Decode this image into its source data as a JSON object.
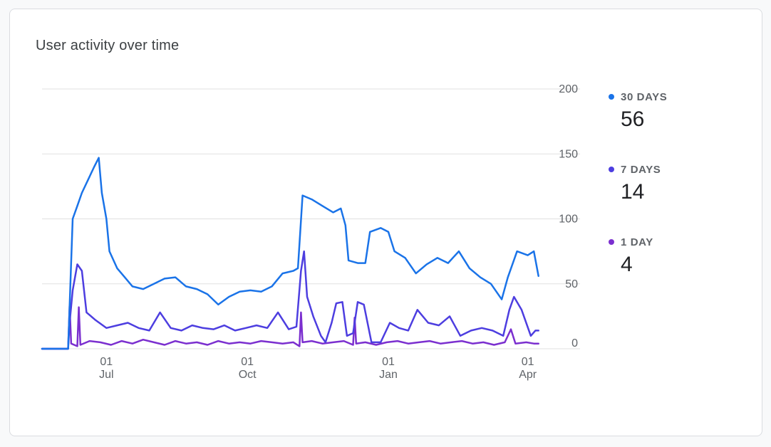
{
  "card": {
    "title": "User activity over time"
  },
  "chart_data": {
    "type": "line",
    "title": "User activity over time",
    "x_range": [
      "2023-05-20",
      "2024-04-10"
    ],
    "ylim": [
      0,
      200
    ],
    "y_ticks": [
      0,
      50,
      100,
      150,
      200
    ],
    "x_ticks": [
      {
        "date": "2023-07-01",
        "day": "01",
        "month": "Jul"
      },
      {
        "date": "2023-10-01",
        "day": "01",
        "month": "Oct"
      },
      {
        "date": "2024-01-01",
        "day": "01",
        "month": "Jan"
      },
      {
        "date": "2024-04-01",
        "day": "01",
        "month": "Apr"
      }
    ],
    "grid": "horizontal",
    "legend_position": "right",
    "series": [
      {
        "name": "30 DAYS",
        "color": "#1a73e8",
        "latest": 56,
        "points": [
          [
            "2023-05-20",
            0
          ],
          [
            "2023-06-06",
            0
          ],
          [
            "2023-06-09",
            100
          ],
          [
            "2023-06-12",
            110
          ],
          [
            "2023-06-15",
            120
          ],
          [
            "2023-06-19",
            130
          ],
          [
            "2023-06-23",
            140
          ],
          [
            "2023-06-26",
            147
          ],
          [
            "2023-06-28",
            120
          ],
          [
            "2023-07-01",
            100
          ],
          [
            "2023-07-03",
            75
          ],
          [
            "2023-07-08",
            62
          ],
          [
            "2023-07-13",
            55
          ],
          [
            "2023-07-18",
            48
          ],
          [
            "2023-07-25",
            46
          ],
          [
            "2023-08-01",
            50
          ],
          [
            "2023-08-08",
            54
          ],
          [
            "2023-08-15",
            55
          ],
          [
            "2023-08-22",
            48
          ],
          [
            "2023-08-29",
            46
          ],
          [
            "2023-09-05",
            42
          ],
          [
            "2023-09-12",
            34
          ],
          [
            "2023-09-19",
            40
          ],
          [
            "2023-09-26",
            44
          ],
          [
            "2023-10-03",
            45
          ],
          [
            "2023-10-10",
            44
          ],
          [
            "2023-10-17",
            48
          ],
          [
            "2023-10-24",
            58
          ],
          [
            "2023-10-31",
            60
          ],
          [
            "2023-11-03",
            62
          ],
          [
            "2023-11-06",
            118
          ],
          [
            "2023-11-12",
            115
          ],
          [
            "2023-11-19",
            110
          ],
          [
            "2023-11-26",
            105
          ],
          [
            "2023-12-01",
            108
          ],
          [
            "2023-12-04",
            95
          ],
          [
            "2023-12-06",
            68
          ],
          [
            "2023-12-12",
            66
          ],
          [
            "2023-12-17",
            66
          ],
          [
            "2023-12-20",
            90
          ],
          [
            "2023-12-27",
            93
          ],
          [
            "2024-01-01",
            90
          ],
          [
            "2024-01-05",
            75
          ],
          [
            "2024-01-12",
            70
          ],
          [
            "2024-01-19",
            58
          ],
          [
            "2024-01-26",
            65
          ],
          [
            "2024-02-02",
            70
          ],
          [
            "2024-02-09",
            66
          ],
          [
            "2024-02-16",
            75
          ],
          [
            "2024-02-23",
            62
          ],
          [
            "2024-03-01",
            55
          ],
          [
            "2024-03-08",
            50
          ],
          [
            "2024-03-15",
            38
          ],
          [
            "2024-03-19",
            55
          ],
          [
            "2024-03-25",
            75
          ],
          [
            "2024-04-01",
            72
          ],
          [
            "2024-04-05",
            75
          ],
          [
            "2024-04-08",
            56
          ]
        ]
      },
      {
        "name": "7 DAYS",
        "color": "#4d3ee0",
        "latest": 14,
        "points": [
          [
            "2023-05-20",
            0
          ],
          [
            "2023-06-06",
            0
          ],
          [
            "2023-06-07",
            20
          ],
          [
            "2023-06-09",
            45
          ],
          [
            "2023-06-12",
            65
          ],
          [
            "2023-06-15",
            60
          ],
          [
            "2023-06-18",
            28
          ],
          [
            "2023-06-24",
            22
          ],
          [
            "2023-07-01",
            16
          ],
          [
            "2023-07-08",
            18
          ],
          [
            "2023-07-15",
            20
          ],
          [
            "2023-07-22",
            16
          ],
          [
            "2023-07-29",
            14
          ],
          [
            "2023-08-05",
            28
          ],
          [
            "2023-08-12",
            16
          ],
          [
            "2023-08-19",
            14
          ],
          [
            "2023-08-26",
            18
          ],
          [
            "2023-09-02",
            16
          ],
          [
            "2023-09-09",
            15
          ],
          [
            "2023-09-16",
            18
          ],
          [
            "2023-09-23",
            14
          ],
          [
            "2023-09-30",
            16
          ],
          [
            "2023-10-07",
            18
          ],
          [
            "2023-10-14",
            16
          ],
          [
            "2023-10-21",
            28
          ],
          [
            "2023-10-28",
            15
          ],
          [
            "2023-11-02",
            17
          ],
          [
            "2023-11-05",
            60
          ],
          [
            "2023-11-07",
            75
          ],
          [
            "2023-11-09",
            40
          ],
          [
            "2023-11-13",
            25
          ],
          [
            "2023-11-18",
            10
          ],
          [
            "2023-11-21",
            5
          ],
          [
            "2023-11-25",
            20
          ],
          [
            "2023-11-28",
            35
          ],
          [
            "2023-12-02",
            36
          ],
          [
            "2023-12-05",
            10
          ],
          [
            "2023-12-09",
            12
          ],
          [
            "2023-12-12",
            36
          ],
          [
            "2023-12-16",
            34
          ],
          [
            "2023-12-21",
            5
          ],
          [
            "2023-12-27",
            5
          ],
          [
            "2024-01-02",
            20
          ],
          [
            "2024-01-08",
            16
          ],
          [
            "2024-01-14",
            14
          ],
          [
            "2024-01-20",
            30
          ],
          [
            "2024-01-27",
            20
          ],
          [
            "2024-02-03",
            18
          ],
          [
            "2024-02-10",
            25
          ],
          [
            "2024-02-17",
            10
          ],
          [
            "2024-02-24",
            14
          ],
          [
            "2024-03-02",
            16
          ],
          [
            "2024-03-09",
            14
          ],
          [
            "2024-03-16",
            10
          ],
          [
            "2024-03-20",
            30
          ],
          [
            "2024-03-23",
            40
          ],
          [
            "2024-03-28",
            30
          ],
          [
            "2024-04-03",
            10
          ],
          [
            "2024-04-06",
            14
          ],
          [
            "2024-04-08",
            14
          ]
        ]
      },
      {
        "name": "1 DAY",
        "color": "#7b2fcf",
        "latest": 4,
        "points": [
          [
            "2023-05-20",
            0
          ],
          [
            "2023-06-06",
            0
          ],
          [
            "2023-06-07",
            33
          ],
          [
            "2023-06-08",
            4
          ],
          [
            "2023-06-12",
            2
          ],
          [
            "2023-06-13",
            32
          ],
          [
            "2023-06-14",
            3
          ],
          [
            "2023-06-20",
            6
          ],
          [
            "2023-06-27",
            5
          ],
          [
            "2023-07-04",
            3
          ],
          [
            "2023-07-11",
            6
          ],
          [
            "2023-07-18",
            4
          ],
          [
            "2023-07-25",
            7
          ],
          [
            "2023-08-01",
            5
          ],
          [
            "2023-08-08",
            3
          ],
          [
            "2023-08-15",
            6
          ],
          [
            "2023-08-22",
            4
          ],
          [
            "2023-08-29",
            5
          ],
          [
            "2023-09-05",
            3
          ],
          [
            "2023-09-12",
            6
          ],
          [
            "2023-09-19",
            4
          ],
          [
            "2023-09-26",
            5
          ],
          [
            "2023-10-03",
            4
          ],
          [
            "2023-10-10",
            6
          ],
          [
            "2023-10-17",
            5
          ],
          [
            "2023-10-24",
            4
          ],
          [
            "2023-10-31",
            5
          ],
          [
            "2023-11-04",
            2
          ],
          [
            "2023-11-05",
            28
          ],
          [
            "2023-11-06",
            5
          ],
          [
            "2023-11-12",
            6
          ],
          [
            "2023-11-19",
            4
          ],
          [
            "2023-11-26",
            5
          ],
          [
            "2023-12-03",
            6
          ],
          [
            "2023-12-09",
            3
          ],
          [
            "2023-12-10",
            24
          ],
          [
            "2023-12-11",
            4
          ],
          [
            "2023-12-17",
            5
          ],
          [
            "2023-12-24",
            3
          ],
          [
            "2023-12-31",
            5
          ],
          [
            "2024-01-07",
            6
          ],
          [
            "2024-01-14",
            4
          ],
          [
            "2024-01-21",
            5
          ],
          [
            "2024-01-28",
            6
          ],
          [
            "2024-02-04",
            4
          ],
          [
            "2024-02-11",
            5
          ],
          [
            "2024-02-18",
            6
          ],
          [
            "2024-02-25",
            4
          ],
          [
            "2024-03-03",
            5
          ],
          [
            "2024-03-10",
            3
          ],
          [
            "2024-03-17",
            5
          ],
          [
            "2024-03-21",
            15
          ],
          [
            "2024-03-24",
            4
          ],
          [
            "2024-03-31",
            5
          ],
          [
            "2024-04-05",
            4
          ],
          [
            "2024-04-08",
            4
          ]
        ]
      }
    ]
  }
}
